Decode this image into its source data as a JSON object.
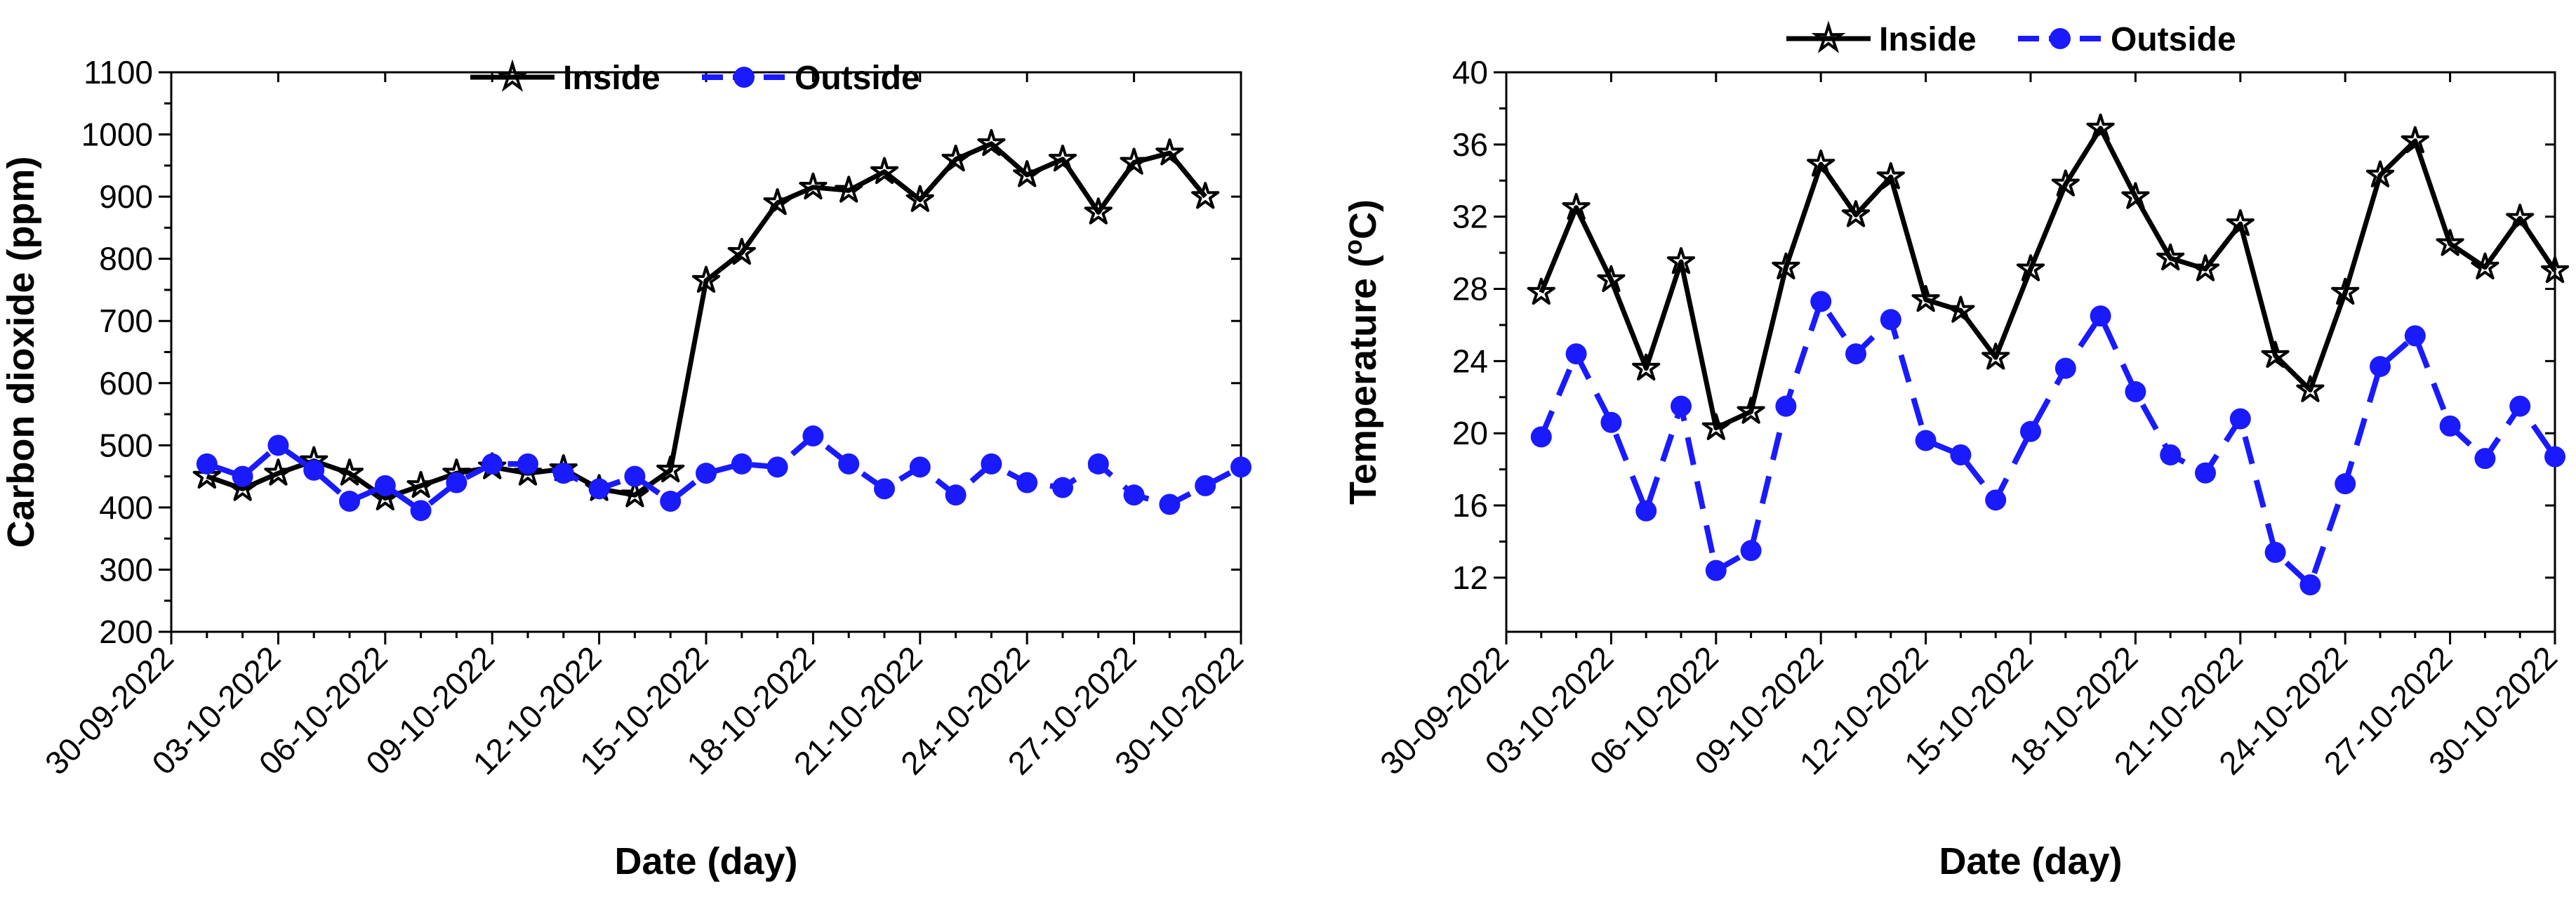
{
  "chart_data": [
    {
      "type": "line",
      "xlabel": "Date (day)",
      "ylabel": "Carbon dioxide (ppm)",
      "ylim": [
        200,
        1100
      ],
      "yticks": [
        "200",
        "300",
        "400",
        "500",
        "600",
        "700",
        "800",
        "900",
        "1000",
        "1100"
      ],
      "x_tick_labels": [
        "30-09-2022",
        "03-10-2022",
        "06-10-2022",
        "09-10-2022",
        "12-10-2022",
        "15-10-2022",
        "18-10-2022",
        "21-10-2022",
        "24-10-2022",
        "27-10-2022",
        "30-10-2022"
      ],
      "xlim": [
        0,
        30
      ],
      "x_tick_step": 3,
      "x": [
        1,
        2,
        3,
        4,
        5,
        6,
        7,
        8,
        9,
        10,
        11,
        12,
        13,
        14,
        15,
        16,
        17,
        18,
        19,
        20,
        21,
        22,
        23,
        24,
        25,
        26,
        27,
        28,
        29,
        30
      ],
      "legend_position": "top-center",
      "series": [
        {
          "name": "Inside",
          "style": "solid",
          "marker": "star",
          "color": "#000000",
          "values": [
            450,
            430,
            455,
            475,
            455,
            415,
            435,
            455,
            465,
            455,
            462,
            430,
            420,
            460,
            765,
            810,
            890,
            915,
            910,
            940,
            895,
            960,
            985,
            935,
            960,
            875,
            955,
            970,
            900,
            null
          ]
        },
        {
          "name": "Outside",
          "style": "dashed",
          "marker": "circle",
          "color": "#1a1aff",
          "values": [
            470,
            450,
            500,
            460,
            410,
            435,
            395,
            440,
            470,
            470,
            455,
            430,
            450,
            410,
            455,
            470,
            465,
            515,
            470,
            430,
            465,
            420,
            470,
            440,
            432,
            470,
            420,
            405,
            435,
            465
          ]
        }
      ]
    },
    {
      "type": "line",
      "xlabel": "Date (day)",
      "ylabel_prefix": "Temperature (",
      "ylabel_sup": "o",
      "ylabel_suffix": "C)",
      "ylim": [
        9,
        40
      ],
      "yticks": [
        "12",
        "16",
        "20",
        "24",
        "28",
        "32",
        "36",
        "40"
      ],
      "x_tick_labels": [
        "30-09-2022",
        "03-10-2022",
        "06-10-2022",
        "09-10-2022",
        "12-10-2022",
        "15-10-2022",
        "18-10-2022",
        "21-10-2022",
        "24-10-2022",
        "27-10-2022",
        "30-10-2022"
      ],
      "xlim": [
        0,
        30
      ],
      "x_tick_step": 3,
      "x": [
        1,
        2,
        3,
        4,
        5,
        6,
        7,
        8,
        9,
        10,
        11,
        12,
        13,
        14,
        15,
        16,
        17,
        18,
        19,
        20,
        21,
        22,
        23,
        24,
        25,
        26,
        27,
        28,
        29,
        30
      ],
      "legend_position": "top-center",
      "series": [
        {
          "name": "Inside",
          "style": "solid",
          "marker": "star",
          "color": "#000000",
          "values": [
            27.8,
            32.5,
            28.5,
            23.6,
            29.5,
            20.3,
            21.2,
            29.2,
            34.9,
            32.1,
            34.2,
            27.4,
            26.8,
            24.2,
            29.1,
            33.8,
            36.9,
            33.1,
            29.7,
            29.1,
            31.6,
            24.3,
            22.4,
            27.8,
            34.3,
            36.2,
            30.5,
            29.2,
            31.9,
            29.0
          ]
        },
        {
          "name": "Outside",
          "style": "dashed",
          "marker": "circle",
          "color": "#1a1aff",
          "values": [
            19.8,
            24.4,
            20.6,
            15.7,
            21.5,
            12.4,
            13.5,
            21.5,
            27.3,
            24.4,
            26.3,
            19.6,
            18.8,
            16.3,
            20.1,
            23.6,
            26.5,
            22.3,
            18.8,
            17.8,
            20.8,
            13.4,
            11.6,
            17.2,
            23.7,
            25.4,
            20.4,
            18.6,
            21.5,
            18.7
          ]
        }
      ]
    }
  ]
}
